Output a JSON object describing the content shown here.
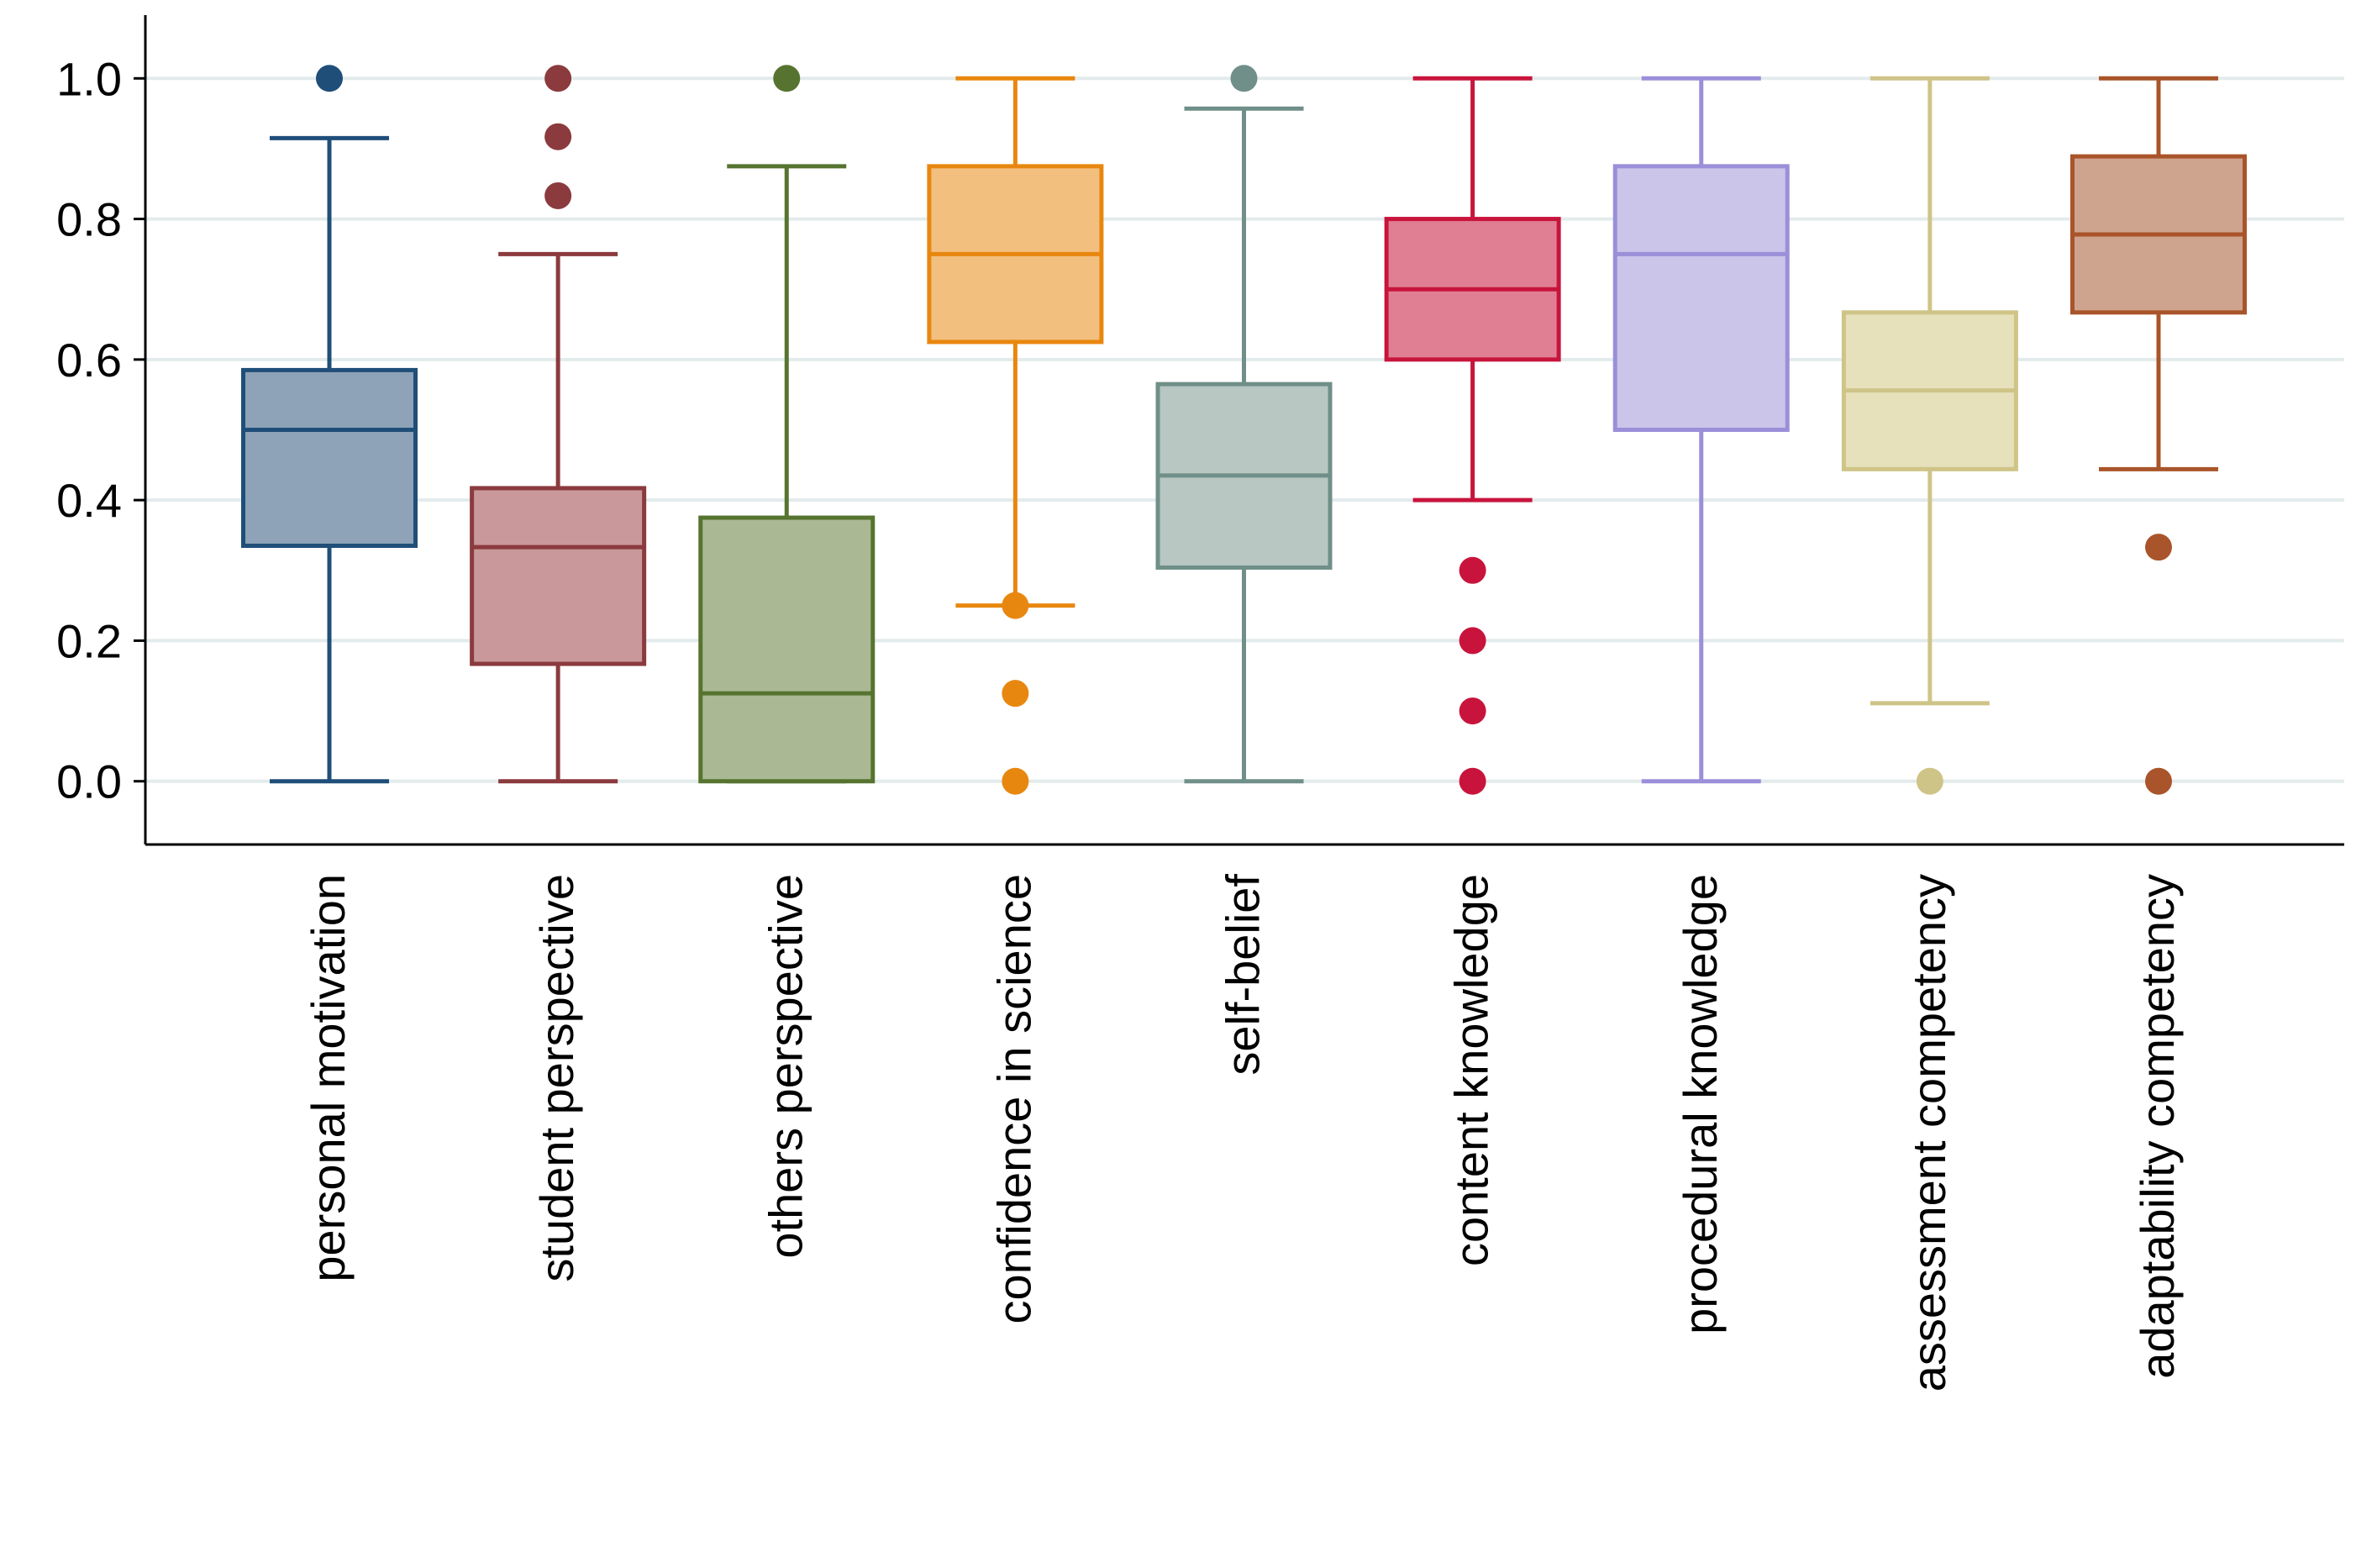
{
  "chart_data": {
    "type": "box",
    "title": "",
    "xlabel": "",
    "ylabel": "",
    "ylim": [
      -0.09,
      1.09
    ],
    "yticks": [
      "0.0",
      "0.2",
      "0.4",
      "0.6",
      "0.8",
      "1.0"
    ],
    "grid": true,
    "series": [
      {
        "name": "personal motivation",
        "color": "#1f4e79",
        "fill": "#8ea3b7",
        "whisker_low": 0.0,
        "q1": 0.335,
        "median": 0.5,
        "q3": 0.585,
        "whisker_high": 0.915,
        "outliers": [
          1.0
        ]
      },
      {
        "name": "student perspective",
        "color": "#8b3a3e",
        "fill": "#c9989a",
        "whisker_low": 0.0,
        "q1": 0.167,
        "median": 0.333,
        "q3": 0.417,
        "whisker_high": 0.75,
        "outliers": [
          0.833,
          0.917,
          1.0
        ]
      },
      {
        "name": "others perspective",
        "color": "#56742f",
        "fill": "#aab993",
        "whisker_low": 0.0,
        "q1": 0.0,
        "median": 0.125,
        "q3": 0.375,
        "whisker_high": 0.875,
        "outliers": [
          1.0
        ]
      },
      {
        "name": "confidence in science",
        "color": "#e8870f",
        "fill": "#f2bf7f",
        "whisker_low": 0.25,
        "q1": 0.625,
        "median": 0.75,
        "q3": 0.875,
        "whisker_high": 1.0,
        "outliers": [
          0.0,
          0.125,
          0.25
        ]
      },
      {
        "name": "self-belief",
        "color": "#6f8f88",
        "fill": "#b8c7c2",
        "whisker_low": 0.0,
        "q1": 0.304,
        "median": 0.435,
        "q3": 0.565,
        "whisker_high": 0.957,
        "outliers": [
          1.0
        ]
      },
      {
        "name": "content knowledge",
        "color": "#c8143c",
        "fill": "#e07f93",
        "whisker_low": 0.4,
        "q1": 0.6,
        "median": 0.7,
        "q3": 0.8,
        "whisker_high": 1.0,
        "outliers": [
          0.0,
          0.1,
          0.2,
          0.3
        ]
      },
      {
        "name": "procedural knowledge",
        "color": "#9b8fd9",
        "fill": "#cbc5ea",
        "whisker_low": 0.0,
        "q1": 0.5,
        "median": 0.75,
        "q3": 0.875,
        "whisker_high": 1.0,
        "outliers": []
      },
      {
        "name": "assessment competency",
        "color": "#cfc487",
        "fill": "#e6e0bb",
        "whisker_low": 0.111,
        "q1": 0.444,
        "median": 0.556,
        "q3": 0.667,
        "whisker_high": 1.0,
        "outliers": [
          0.0
        ]
      },
      {
        "name": "adaptability competency",
        "color": "#a9542a",
        "fill": "#cfa48e",
        "whisker_low": 0.444,
        "q1": 0.667,
        "median": 0.778,
        "q3": 0.889,
        "whisker_high": 1.0,
        "outliers": [
          0.0,
          0.333
        ]
      }
    ]
  }
}
